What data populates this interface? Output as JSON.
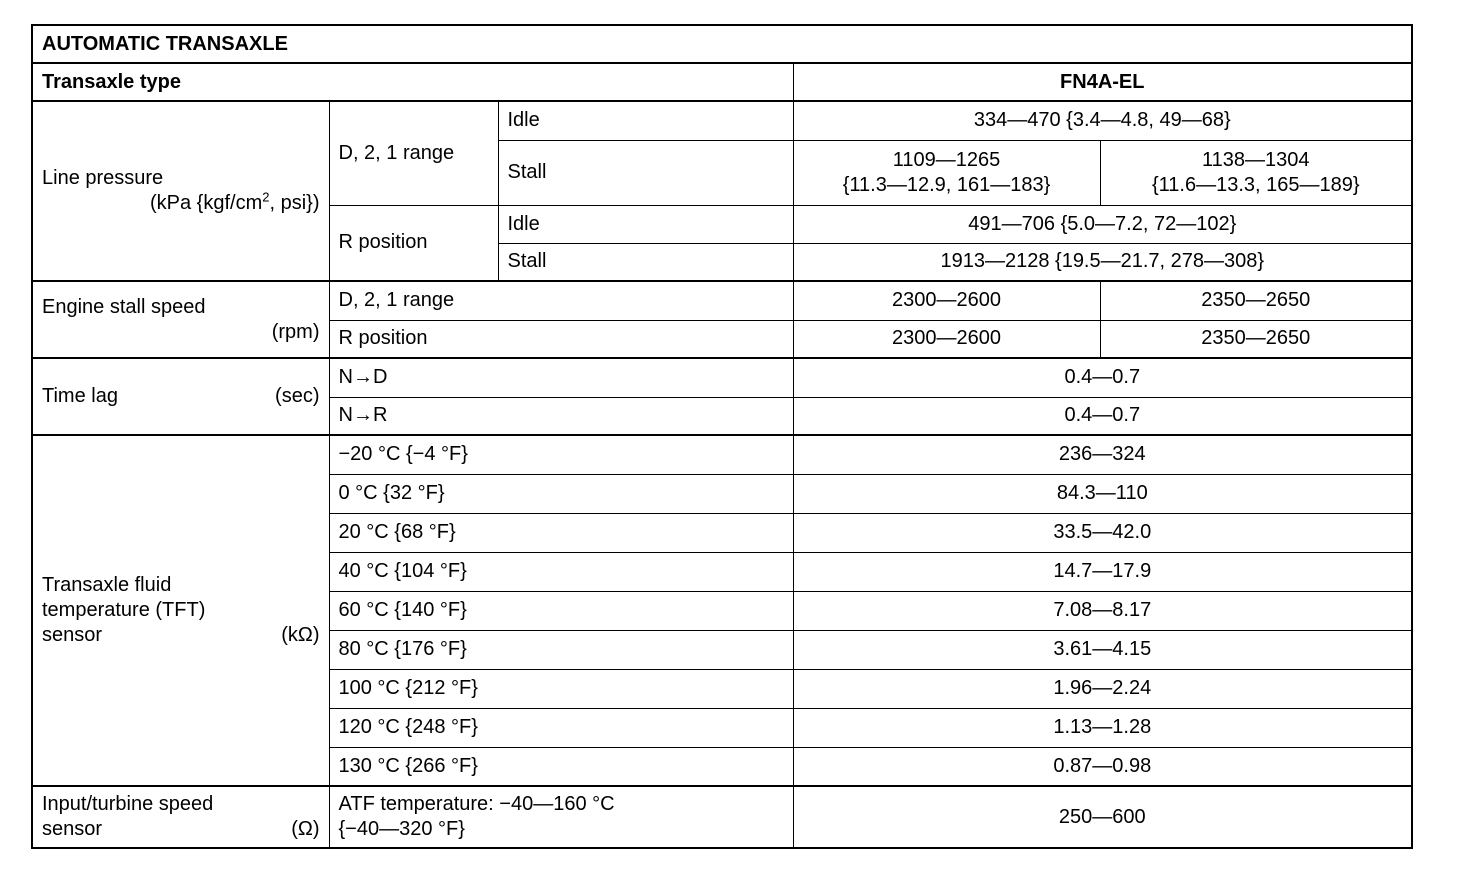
{
  "title": "AUTOMATIC TRANSAXLE",
  "type_row": {
    "label": "Transaxle type",
    "value": "FN4A-EL"
  },
  "line_pressure": {
    "label": "Line pressure",
    "unit_pre": "(kPa {kgf/cm",
    "unit_sup": "2",
    "unit_post": ", psi})",
    "d21": "D, 2, 1 range",
    "r": "R position",
    "idle": "Idle",
    "stall": "Stall",
    "d21_idle": "334—470 {3.4—4.8, 49—68}",
    "d21_stall_a1": "1109—1265",
    "d21_stall_a2": "{11.3—12.9, 161—183}",
    "d21_stall_b1": "1138—1304",
    "d21_stall_b2": "{11.6—13.3, 165—189}",
    "r_idle": "491—706 {5.0—7.2, 72—102}",
    "r_stall": "1913—2128 {19.5—21.7, 278—308}"
  },
  "stall_speed": {
    "label": "Engine stall speed",
    "unit": "(rpm)",
    "rows": [
      {
        "cond": "D, 2, 1 range",
        "a": "2300—2600",
        "b": "2350—2650"
      },
      {
        "cond": "R position",
        "a": "2300—2600",
        "b": "2350—2650"
      }
    ]
  },
  "time_lag": {
    "label": "Time lag",
    "unit": "(sec)",
    "rows": [
      {
        "cond": "N→D",
        "value": "0.4—0.7"
      },
      {
        "cond": "N→R",
        "value": "0.4—0.7"
      }
    ]
  },
  "tft": {
    "label1": "Transaxle fluid",
    "label2": "temperature (TFT)",
    "label3": "sensor",
    "unit": "(kΩ)",
    "rows": [
      {
        "cond": "−20 °C {−4 °F}",
        "value": "236—324"
      },
      {
        "cond": "0 °C {32 °F}",
        "value": "84.3—110"
      },
      {
        "cond": "20 °C {68 °F}",
        "value": "33.5—42.0"
      },
      {
        "cond": "40 °C {104 °F}",
        "value": "14.7—17.9"
      },
      {
        "cond": "60 °C {140 °F}",
        "value": "7.08—8.17"
      },
      {
        "cond": "80 °C {176 °F}",
        "value": "3.61—4.15"
      },
      {
        "cond": "100 °C {212 °F}",
        "value": "1.96—2.24"
      },
      {
        "cond": "120 °C {248 °F}",
        "value": "1.13—1.28"
      },
      {
        "cond": "130 °C {266 °F}",
        "value": "0.87—0.98"
      }
    ]
  },
  "input_sensor": {
    "label1": "Input/turbine speed",
    "label2": "sensor",
    "unit": "(Ω)",
    "cond1": "ATF temperature: −40—160 °C",
    "cond2": "{−40—320 °F}",
    "value": "250—600"
  }
}
